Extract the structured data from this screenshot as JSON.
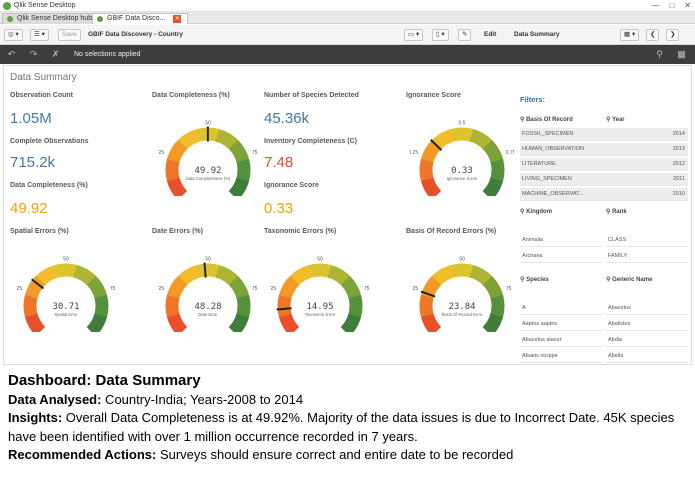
{
  "window": {
    "title": "Qlik Sense Desktop"
  },
  "tabs": [
    {
      "label": "Qlik Sense Desktop hub"
    },
    {
      "label": "GBIF Data Disco..."
    }
  ],
  "toolbar": {
    "save_label": "Save",
    "app_title": "GBIF Data Discovery - Country",
    "edit_label": "Edit",
    "sheet_name": "Data Summary"
  },
  "selection_bar": {
    "text": "No selections applied"
  },
  "sheet": {
    "title": "Data Summary"
  },
  "kpis": [
    {
      "label": "Observation Count",
      "value": "1.05M",
      "color": "#4477aa"
    },
    {
      "label": "Complete Observations",
      "value": "715.2k",
      "color": "#4477aa"
    },
    {
      "label": "Data Completeness (%)",
      "value": "49.92",
      "color": "#f0a500"
    },
    {
      "label": "Number of Species Detected",
      "value": "45.36k",
      "color": "#4477aa"
    },
    {
      "label": "Inventory Completeness (C)",
      "value": "7.48",
      "color": "#e64c2e"
    },
    {
      "label": "Ignorance Score",
      "value": "0.33",
      "color": "#f0a500"
    }
  ],
  "gauges": [
    {
      "title": "Data Completeness (%)",
      "value": 49.92,
      "value_text": "49.92",
      "sublabel": "Data Completeness (%)",
      "min": 0,
      "max": 100,
      "ticks": [
        "0",
        "25",
        "50",
        "75",
        "100"
      ]
    },
    {
      "title": "Ignorance Score",
      "value": 0.33,
      "value_text": "0.33",
      "sublabel": "Ignorance Score",
      "min": 0,
      "max": 1,
      "ticks": [
        "0",
        "0.25",
        "0.5",
        "0.75",
        "1"
      ]
    },
    {
      "title": "Spatial Errors (%)",
      "value": 30.71,
      "value_text": "30.71",
      "sublabel": "Spatial Error",
      "min": 0,
      "max": 100,
      "ticks": [
        "0",
        "25",
        "50",
        "75",
        "100"
      ]
    },
    {
      "title": "Date Errors (%)",
      "value": 48.28,
      "value_text": "48.28",
      "sublabel": "Date Error",
      "min": 0,
      "max": 100,
      "ticks": [
        "0",
        "25",
        "50",
        "75",
        "100"
      ]
    },
    {
      "title": "Taxonomic Errors (%)",
      "value": 14.95,
      "value_text": "14.95",
      "sublabel": "Taxonomic Error",
      "min": 0,
      "max": 100,
      "ticks": [
        "0",
        "25",
        "50",
        "75",
        "100"
      ]
    },
    {
      "title": "Basis Of Record Errors (%)",
      "value": 23.84,
      "value_text": "23.84",
      "sublabel": "Basis Of Record Error",
      "min": 0,
      "max": 100,
      "ticks": [
        "0",
        "25",
        "50",
        "75",
        "100"
      ]
    }
  ],
  "filters": {
    "title": "Filters:",
    "basis_of_record": {
      "label": "Basis Of Record",
      "items": [
        "FOSSIL_SPECIMEN",
        "HUMAN_OBSERVATION",
        "LITERATURE",
        "LIVING_SPECIMEN",
        "MACHINE_OBSERVAT..."
      ]
    },
    "year": {
      "label": "Year",
      "items": [
        "2014",
        "2013",
        "2012",
        "2011",
        "2010"
      ]
    },
    "kingdom": {
      "label": "Kingdom",
      "items": [
        "Animalia",
        "Archaea"
      ]
    },
    "rank": {
      "label": "Rank",
      "items": [
        "CLASS",
        "FAMILY"
      ]
    },
    "species": {
      "label": "Species",
      "items": [
        "A",
        "Aaptos aaptos",
        "Abacetus alacer",
        "Abaeis nicippe"
      ]
    },
    "generic_name": {
      "label": "Generic Name",
      "items": [
        "Abacetus",
        "Abalistes",
        "Abdia",
        "Abelia"
      ]
    }
  },
  "caption": {
    "heading": "Dashboard: Data Summary",
    "data_analysed_label": "Data Analysed:",
    "data_analysed": " Country-India; Years-2008 to 2014",
    "insights_label": "Insights:",
    "insights": " Overall Data Completeness is at 49.92%. Majority of the data issues is due to Incorrect Date. 45K species have been identified with over 1 million occurrence recorded in 7 years.",
    "actions_label": "Recommended Actions:",
    "actions": " Surveys should ensure correct and entire date to be recorded"
  }
}
